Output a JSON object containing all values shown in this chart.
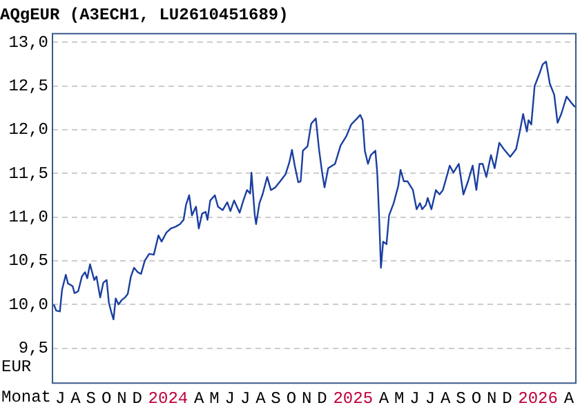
{
  "chart_data": {
    "type": "line",
    "title": "AQgEUR (A3ECH1, LU2610451689)",
    "xlabel": "Monat",
    "ylabel": "EUR",
    "series": [
      {
        "color": "#1a3fa0",
        "x": [
          2023.507,
          2023.52,
          2023.54,
          2023.552,
          2023.572,
          2023.584,
          2023.609,
          2023.619,
          2023.639,
          2023.659,
          2023.676,
          2023.688,
          2023.703,
          2023.726,
          2023.738,
          2023.758,
          2023.775,
          2023.793,
          2023.805,
          2023.817,
          2023.83,
          2023.842,
          2023.857,
          2023.874,
          2023.892,
          2023.907,
          2023.924,
          2023.941,
          2023.961,
          2023.979,
          2023.999,
          2024.023,
          2024.048,
          2024.073,
          2024.09,
          2024.115,
          2024.14,
          2024.165,
          2024.19,
          2024.209,
          2024.222,
          2024.239,
          2024.254,
          2024.276,
          2024.291,
          2024.309,
          2024.328,
          2024.338,
          2024.353,
          2024.378,
          2024.395,
          2024.42,
          2024.445,
          2024.462,
          2024.482,
          2024.512,
          2024.532,
          2024.552,
          2024.569,
          2024.576,
          2024.594,
          2024.601,
          2024.619,
          2024.636,
          2024.661,
          2024.681,
          2024.705,
          2024.735,
          2024.76,
          2024.78,
          2024.795,
          2024.81,
          2024.829,
          2024.842,
          2024.854,
          2024.879,
          2024.899,
          2024.924,
          2024.941,
          2024.958,
          2024.971,
          2024.991,
          2025.028,
          2025.058,
          2025.09,
          2025.115,
          2025.147,
          2025.164,
          2025.177,
          2025.189,
          2025.206,
          2025.221,
          2025.246,
          2025.256,
          2025.266,
          2025.276,
          2025.288,
          2025.306,
          2025.32,
          2025.345,
          2025.37,
          2025.382,
          2025.4,
          2025.42,
          2025.449,
          2025.469,
          2025.487,
          2025.499,
          2025.519,
          2025.529,
          2025.549,
          2025.573,
          2025.593,
          2025.611,
          2025.635,
          2025.648,
          2025.668,
          2025.697,
          2025.722,
          2025.747,
          2025.772,
          2025.792,
          2025.809,
          2025.826,
          2025.846,
          2025.871,
          2025.891,
          2025.916,
          2025.94,
          2025.975,
          2026.007,
          2026.025,
          2026.045,
          2026.065,
          2026.074,
          2026.089,
          2026.107,
          2026.131,
          2026.151,
          2026.169,
          2026.189,
          2026.213,
          2026.231,
          2026.251,
          2026.28,
          2026.305,
          2026.325
        ],
        "values": [
          10.0,
          9.93,
          9.92,
          10.17,
          10.34,
          10.24,
          10.21,
          10.13,
          10.15,
          10.32,
          10.37,
          10.3,
          10.46,
          10.28,
          10.32,
          10.08,
          10.25,
          10.28,
          10.02,
          9.92,
          9.83,
          10.07,
          10.0,
          10.05,
          10.08,
          10.12,
          10.32,
          10.42,
          10.37,
          10.35,
          10.5,
          10.58,
          10.57,
          10.79,
          10.72,
          10.82,
          10.87,
          10.89,
          10.92,
          10.97,
          11.14,
          11.25,
          11.02,
          11.12,
          10.87,
          11.04,
          11.06,
          10.97,
          11.19,
          11.25,
          11.12,
          11.08,
          11.17,
          11.07,
          11.19,
          11.05,
          11.19,
          11.31,
          11.27,
          11.51,
          11.02,
          10.92,
          11.16,
          11.26,
          11.46,
          11.31,
          11.34,
          11.42,
          11.49,
          11.62,
          11.77,
          11.59,
          11.4,
          11.41,
          11.76,
          11.81,
          12.07,
          12.13,
          11.78,
          11.51,
          11.34,
          11.56,
          11.61,
          11.82,
          11.93,
          12.06,
          12.13,
          12.17,
          12.11,
          11.76,
          11.61,
          11.71,
          11.76,
          11.51,
          11.02,
          10.42,
          10.72,
          10.69,
          11.02,
          11.16,
          11.36,
          11.54,
          11.41,
          11.41,
          11.31,
          11.09,
          11.16,
          11.09,
          11.14,
          11.22,
          11.09,
          11.31,
          11.26,
          11.31,
          11.49,
          11.59,
          11.51,
          11.61,
          11.26,
          11.41,
          11.59,
          11.31,
          11.61,
          11.61,
          11.46,
          11.71,
          11.56,
          11.85,
          11.78,
          11.69,
          11.78,
          11.96,
          12.18,
          11.98,
          12.11,
          12.06,
          12.5,
          12.63,
          12.75,
          12.78,
          12.53,
          12.4,
          12.08,
          12.18,
          12.38,
          12.31,
          12.26
        ]
      }
    ],
    "xlim": [
      2023.5,
      2026.33
    ],
    "xticks": [
      {
        "value": 2023.542,
        "label": "J"
      },
      {
        "value": 2023.625,
        "label": "A"
      },
      {
        "value": 2023.708,
        "label": "S"
      },
      {
        "value": 2023.792,
        "label": "O"
      },
      {
        "value": 2023.875,
        "label": "N"
      },
      {
        "value": 2023.958,
        "label": "D"
      },
      {
        "value": 2024.125,
        "label": "2024"
      },
      {
        "value": 2024.292,
        "label": "A"
      },
      {
        "value": 2024.375,
        "label": "M"
      },
      {
        "value": 2024.458,
        "label": "J"
      },
      {
        "value": 2024.542,
        "label": "J"
      },
      {
        "value": 2024.625,
        "label": "A"
      },
      {
        "value": 2024.708,
        "label": "S"
      },
      {
        "value": 2024.792,
        "label": "O"
      },
      {
        "value": 2024.875,
        "label": "N"
      },
      {
        "value": 2024.958,
        "label": "D"
      },
      {
        "value": 2025.125,
        "label": "2025"
      },
      {
        "value": 2025.292,
        "label": "A"
      },
      {
        "value": 2025.375,
        "label": "M"
      },
      {
        "value": 2025.458,
        "label": "J"
      },
      {
        "value": 2025.542,
        "label": "J"
      },
      {
        "value": 2025.625,
        "label": "A"
      },
      {
        "value": 2025.708,
        "label": "S"
      },
      {
        "value": 2025.792,
        "label": "O"
      },
      {
        "value": 2025.875,
        "label": "N"
      },
      {
        "value": 2025.958,
        "label": "D"
      },
      {
        "value": 2026.125,
        "label": "2026"
      },
      {
        "value": 2026.292,
        "label": "A"
      }
    ],
    "ylim": [
      9.1,
      13.1
    ],
    "yticks": [
      {
        "value": 9.5,
        "label": "9,5"
      },
      {
        "value": 10,
        "label": "10,0"
      },
      {
        "value": 10.5,
        "label": "10,5"
      },
      {
        "value": 11,
        "label": "11,0"
      },
      {
        "value": 11.5,
        "label": "11,5"
      },
      {
        "value": 12,
        "label": "12,0"
      },
      {
        "value": 12.5,
        "label": "12,5"
      },
      {
        "value": 13,
        "label": "13,0"
      }
    ],
    "grid": "y",
    "legend": false,
    "marker": "none",
    "line_style": "solid"
  }
}
